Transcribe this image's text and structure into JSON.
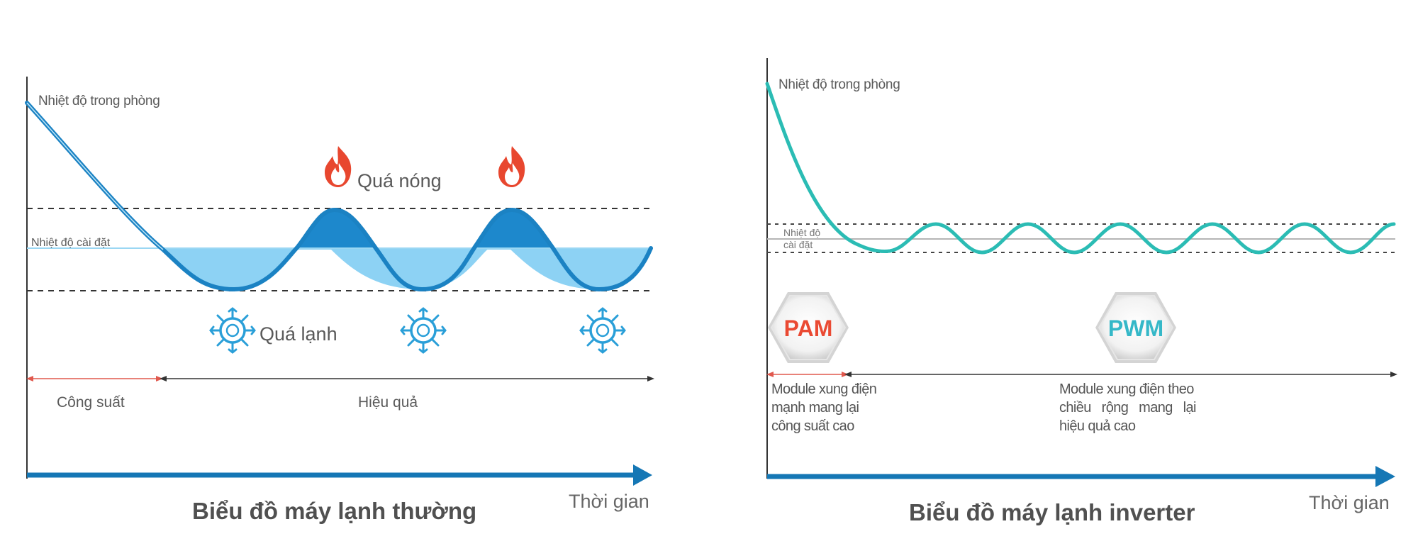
{
  "left_chart": {
    "room_temp_label": "Nhiệt độ trong phòng",
    "set_temp_label": "Nhiệt độ cài đặt",
    "too_hot_label": "Quá nóng",
    "too_cold_label": "Quá lạnh",
    "phase_power_label": "Công suất",
    "phase_efficiency_label": "Hiệu quả",
    "time_label": "Thời gian",
    "title": "Biểu đồ máy lạnh thường",
    "wave_color": "#1b82c3",
    "fill_color": "#8dd2f4",
    "hot_fill_color": "#1d88cc",
    "fire_icon": "fire-icon",
    "snowflake_icon": "snowflake-icon"
  },
  "right_chart": {
    "room_temp_label": "Nhiệt độ trong phòng",
    "set_temp_label_line1": "Nhiệt độ",
    "set_temp_label_line2": "cài đặt",
    "pam_badge": "PAM",
    "pwm_badge": "PWM",
    "pam_desc_line1": "Module xung điện",
    "pam_desc_line2": "mạnh mang lại",
    "pam_desc_line3": "công suất cao",
    "pwm_desc_line1": "Module xung điện theo",
    "pwm_desc_line2": "chiều   rộng   mang   lại",
    "pwm_desc_line3": "hiệu quả cao",
    "time_label": "Thời gian",
    "title": "Biểu đồ máy lạnh inverter",
    "wave_color": "#2bbcb4",
    "pam_color": "#ea4a33",
    "pwm_color": "#35b8c8"
  },
  "colors": {
    "axis_blue": "#1577b5",
    "power_arrow": "#e0584d",
    "dark_arrow": "#333333"
  }
}
